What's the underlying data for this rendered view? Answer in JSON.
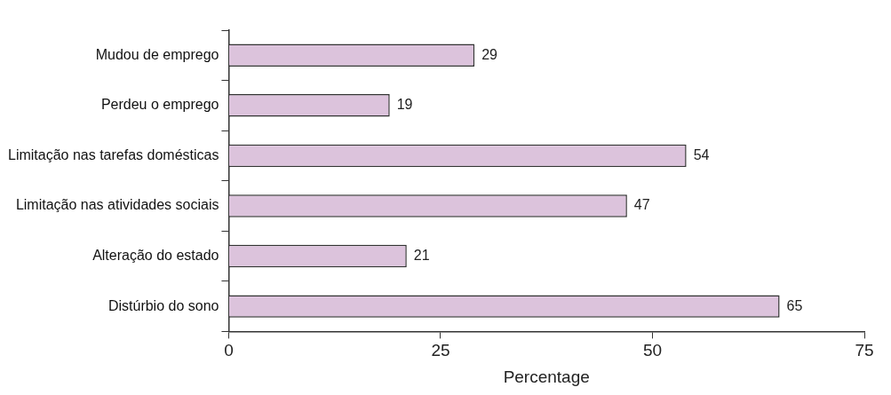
{
  "chart_data": {
    "type": "bar",
    "orientation": "horizontal",
    "categories": [
      "Mudou de emprego",
      "Perdeu o emprego",
      "Limitação nas tarefas domésticas",
      "Limitação nas atividades sociais",
      "Alteração do estado",
      "Distúrbio do sono"
    ],
    "values": [
      29,
      19,
      54,
      47,
      21,
      65
    ],
    "color": "#dcc3dc",
    "x_label": "Percentage",
    "xlim": [
      0,
      75
    ],
    "xticks": [
      0,
      25,
      50,
      75
    ],
    "grid": false,
    "data_labels": true
  }
}
